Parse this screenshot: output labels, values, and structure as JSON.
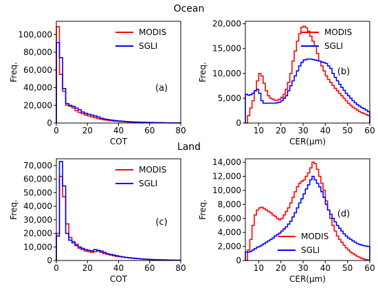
{
  "section_titles": [
    "Ocean",
    "Land"
  ],
  "chart_data": [
    {
      "type": "line",
      "panel_label": "(a)",
      "xlabel": "COT",
      "ylabel": "Freq.",
      "xlim": [
        0,
        80
      ],
      "ylim": [
        0,
        115000
      ],
      "xticks": [
        0,
        20,
        40,
        60,
        80
      ],
      "xtick_labels": [
        "0",
        "20",
        "40",
        "60",
        "80"
      ],
      "yticks": [
        0,
        20000,
        40000,
        60000,
        80000,
        100000
      ],
      "ytick_labels": [
        "0",
        "20,000",
        "40,000",
        "60,000",
        "80,000",
        "100,000"
      ],
      "legend_position": "upper-right",
      "bin_width": 2,
      "x": [
        0,
        2,
        4,
        6,
        8,
        10,
        12,
        14,
        16,
        18,
        20,
        22,
        24,
        26,
        28,
        30,
        32,
        34,
        36,
        38,
        40,
        42,
        44,
        46,
        48,
        50,
        52,
        54,
        56,
        58,
        60,
        62,
        64,
        66,
        68,
        70,
        72,
        74,
        76,
        78
      ],
      "series": [
        {
          "name": "MODIS",
          "color": "#ff0000",
          "values": [
            109000,
            55000,
            36000,
            20000,
            19000,
            17000,
            14000,
            12000,
            10500,
            9000,
            8000,
            7000,
            6000,
            5000,
            4200,
            3600,
            3100,
            2700,
            2300,
            2000,
            1800,
            1600,
            1400,
            1200,
            1000,
            900,
            800,
            700,
            600,
            500,
            450,
            400,
            350,
            300,
            250,
            200,
            170,
            140,
            120,
            100
          ]
        },
        {
          "name": "SGLI",
          "color": "#0000ff",
          "values": [
            91000,
            74000,
            39000,
            22000,
            20000,
            19000,
            17000,
            15000,
            12500,
            11000,
            10000,
            9000,
            8000,
            7000,
            5500,
            4600,
            4000,
            3500,
            3000,
            2600,
            2300,
            2000,
            1700,
            1500,
            1300,
            1100,
            1000,
            900,
            800,
            700,
            600,
            500,
            450,
            400,
            350,
            300,
            250,
            200,
            170,
            150
          ]
        }
      ]
    },
    {
      "type": "line",
      "panel_label": "(b)",
      "xlabel": "CER(μm)",
      "ylabel": "Freq.",
      "xlim": [
        4,
        60
      ],
      "ylim": [
        0,
        20500
      ],
      "xticks": [
        10,
        20,
        30,
        40,
        50,
        60
      ],
      "xtick_labels": [
        "10",
        "20",
        "30",
        "40",
        "50",
        "60"
      ],
      "yticks": [
        0,
        5000,
        10000,
        15000,
        20000
      ],
      "ytick_labels": [
        "0",
        "5,000",
        "10,000",
        "15,000",
        "20,000"
      ],
      "legend_position": "upper-right",
      "bin_width": 1,
      "x": [
        4,
        5,
        6,
        7,
        8,
        9,
        10,
        11,
        12,
        13,
        14,
        15,
        16,
        17,
        18,
        19,
        20,
        21,
        22,
        23,
        24,
        25,
        26,
        27,
        28,
        29,
        30,
        31,
        32,
        33,
        34,
        35,
        36,
        37,
        38,
        39,
        40,
        41,
        42,
        43,
        44,
        45,
        46,
        47,
        48,
        49,
        50,
        51,
        52,
        53,
        54,
        55,
        56,
        57,
        58,
        59
      ],
      "series": [
        {
          "name": "MODIS",
          "color": "#ff0000",
          "values": [
            0,
            1500,
            3000,
            4500,
            6500,
            8500,
            10000,
            9500,
            8000,
            6500,
            5500,
            5000,
            4800,
            4600,
            4600,
            4800,
            5200,
            5800,
            6800,
            8200,
            10000,
            12500,
            14500,
            16500,
            18000,
            19300,
            19500,
            19200,
            18500,
            17500,
            16500,
            15500,
            14000,
            12500,
            11500,
            10500,
            9500,
            8800,
            8200,
            7600,
            7000,
            6500,
            6000,
            5500,
            5000,
            4500,
            4000,
            3600,
            3200,
            2900,
            2600,
            2300,
            2100,
            1900,
            1700,
            1500
          ]
        },
        {
          "name": "SGLI",
          "color": "#0000ff",
          "values": [
            5800,
            5600,
            5700,
            6000,
            6500,
            6800,
            6000,
            4500,
            4000,
            4000,
            4000,
            4000,
            4000,
            4000,
            4100,
            4200,
            4500,
            5000,
            5500,
            6500,
            7500,
            8500,
            9500,
            10500,
            11500,
            12200,
            12700,
            12800,
            12900,
            12900,
            12800,
            12700,
            12600,
            12500,
            12300,
            12200,
            12000,
            11500,
            11000,
            10000,
            9200,
            8500,
            7800,
            7200,
            6600,
            6000,
            5500,
            5000,
            4500,
            4100,
            3700,
            3400,
            3100,
            2900,
            2600,
            2300
          ]
        }
      ]
    },
    {
      "type": "line",
      "panel_label": "(c)",
      "xlabel": "COT",
      "ylabel": "Freq.",
      "xlim": [
        0,
        80
      ],
      "ylim": [
        0,
        75000
      ],
      "xticks": [
        0,
        20,
        40,
        60,
        80
      ],
      "xtick_labels": [
        "0",
        "20",
        "40",
        "60",
        "80"
      ],
      "yticks": [
        0,
        10000,
        20000,
        30000,
        40000,
        50000,
        60000,
        70000
      ],
      "ytick_labels": [
        "0",
        "10,000",
        "20,000",
        "30,000",
        "40,000",
        "50,000",
        "60,000",
        "70,000"
      ],
      "legend_position": "upper-right",
      "bin_width": 2,
      "x": [
        0,
        2,
        4,
        6,
        8,
        10,
        12,
        14,
        16,
        18,
        20,
        22,
        24,
        26,
        28,
        30,
        32,
        34,
        36,
        38,
        40,
        42,
        44,
        46,
        48,
        50,
        52,
        54,
        56,
        58,
        60,
        62,
        64,
        66,
        68,
        70,
        72,
        74,
        76,
        78
      ],
      "series": [
        {
          "name": "MODIS",
          "color": "#ff0000",
          "values": [
            20000,
            62000,
            47000,
            27000,
            17000,
            14000,
            12000,
            9000,
            8000,
            7000,
            6500,
            6000,
            6500,
            7000,
            6000,
            5000,
            4500,
            4000,
            3500,
            3000,
            2800,
            2500,
            2200,
            2000,
            1700,
            1500,
            1300,
            1100,
            900,
            800,
            700,
            600,
            500,
            450,
            400,
            350,
            300,
            250,
            200,
            150
          ]
        },
        {
          "name": "SGLI",
          "color": "#0000ff",
          "values": [
            18000,
            73000,
            55000,
            20000,
            15000,
            13000,
            11000,
            10000,
            9000,
            8000,
            7500,
            7000,
            8000,
            7500,
            7000,
            6000,
            5000,
            4500,
            4000,
            3500,
            3000,
            2600,
            2300,
            2000,
            1800,
            1600,
            1400,
            1200,
            1000,
            900,
            800,
            700,
            600,
            500,
            450,
            400,
            350,
            300,
            250,
            200
          ]
        }
      ]
    },
    {
      "type": "line",
      "panel_label": "(d)",
      "xlabel": "CER(μm)",
      "ylabel": "Freq.",
      "xlim": [
        4,
        60
      ],
      "ylim": [
        0,
        14500
      ],
      "xticks": [
        10,
        20,
        30,
        40,
        50,
        60
      ],
      "xtick_labels": [
        "10",
        "20",
        "30",
        "40",
        "50",
        "60"
      ],
      "yticks": [
        0,
        2000,
        4000,
        6000,
        8000,
        10000,
        12000,
        14000
      ],
      "ytick_labels": [
        "0",
        "2,000",
        "4,000",
        "6,000",
        "8,000",
        "10,000",
        "12,000",
        "14,000"
      ],
      "legend_position": "lower-center",
      "bin_width": 1,
      "x": [
        4,
        5,
        6,
        7,
        8,
        9,
        10,
        11,
        12,
        13,
        14,
        15,
        16,
        17,
        18,
        19,
        20,
        21,
        22,
        23,
        24,
        25,
        26,
        27,
        28,
        29,
        30,
        31,
        32,
        33,
        34,
        35,
        36,
        37,
        38,
        39,
        40,
        41,
        42,
        43,
        44,
        45,
        46,
        47,
        48,
        49,
        50,
        51,
        52,
        53,
        54,
        55,
        56,
        57,
        58,
        59
      ],
      "series": [
        {
          "name": "MODIS",
          "color": "#ff0000",
          "values": [
            0,
            1500,
            3000,
            5000,
            6500,
            7200,
            7500,
            7600,
            7400,
            7200,
            7000,
            6800,
            6500,
            6300,
            6000,
            5800,
            6000,
            6500,
            7000,
            7500,
            8200,
            9000,
            9800,
            10500,
            11000,
            11300,
            11500,
            12000,
            12500,
            13200,
            14000,
            13800,
            13000,
            12000,
            11000,
            10000,
            8500,
            7200,
            6000,
            5000,
            4200,
            3500,
            3000,
            2600,
            2200,
            1800,
            1500,
            1200,
            1000,
            800,
            600,
            450,
            300,
            200,
            120,
            60
          ]
        },
        {
          "name": "SGLI",
          "color": "#0000ff",
          "values": [
            1200,
            1200,
            1300,
            1500,
            1700,
            1900,
            2000,
            2200,
            2400,
            2600,
            2800,
            3000,
            3200,
            3500,
            3700,
            3900,
            4200,
            4500,
            4800,
            5200,
            5600,
            6200,
            6800,
            7500,
            8200,
            8800,
            9500,
            10200,
            10800,
            11500,
            12000,
            11500,
            11000,
            10500,
            9800,
            9000,
            8000,
            7200,
            6600,
            6000,
            5500,
            5000,
            4600,
            4200,
            3800,
            3500,
            3200,
            3000,
            2800,
            2600,
            2400,
            2300,
            2200,
            2100,
            2050,
            2000
          ]
        }
      ]
    }
  ]
}
